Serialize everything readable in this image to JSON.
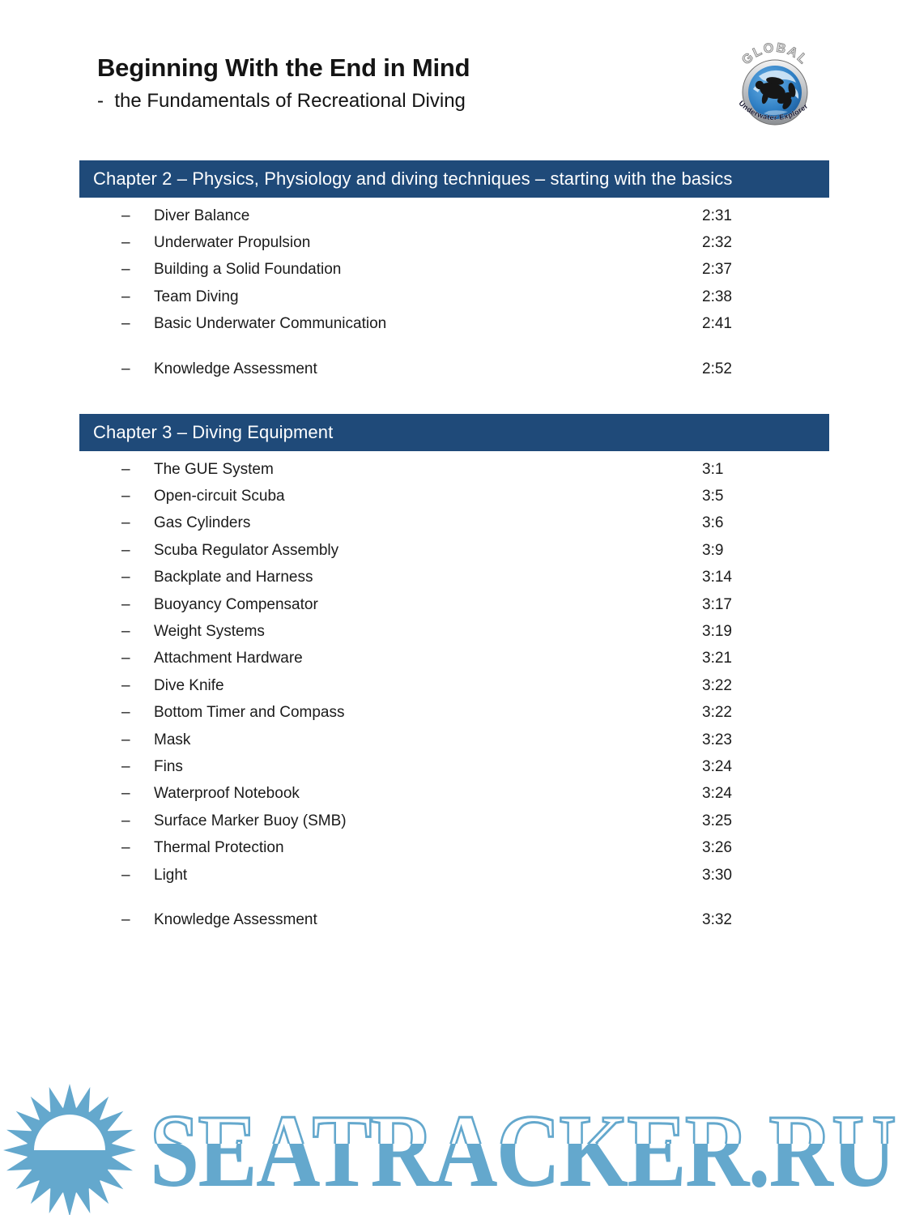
{
  "page": {
    "title": "Beginning With the End in Mind",
    "subtitle": "-  the Fundamentals of Recreational Diving"
  },
  "logo": {
    "top_text": "GLOBAL",
    "bottom_text": "Underwater Explorers"
  },
  "ui": {
    "bullet": "–"
  },
  "chapters": [
    {
      "title": "Chapter 2 – Physics, Physiology and diving techniques – starting with the basics",
      "items": [
        {
          "label": "Diver Balance",
          "time": "2:31"
        },
        {
          "label": "Underwater Propulsion",
          "time": "2:32"
        },
        {
          "label": "Building a Solid Foundation",
          "time": "2:37"
        },
        {
          "label": "Team Diving",
          "time": "2:38"
        },
        {
          "label": "Basic Underwater Communication",
          "time": "2:41"
        }
      ],
      "assessment": {
        "label": "Knowledge Assessment",
        "time": "2:52"
      }
    },
    {
      "title": "Chapter 3 – Diving Equipment",
      "items": [
        {
          "label": "The GUE System",
          "time": "3:1"
        },
        {
          "label": "Open-circuit Scuba",
          "time": "3:5"
        },
        {
          "label": "Gas Cylinders",
          "time": "3:6"
        },
        {
          "label": "Scuba Regulator Assembly",
          "time": "3:9"
        },
        {
          "label": "Backplate and Harness",
          "time": "3:14"
        },
        {
          "label": "Buoyancy Compensator",
          "time": "3:17"
        },
        {
          "label": "Weight Systems",
          "time": "3:19"
        },
        {
          "label": "Attachment Hardware",
          "time": "3:21"
        },
        {
          "label": "Dive Knife",
          "time": "3:22"
        },
        {
          "label": "Bottom Timer and Compass",
          "time": "3:22"
        },
        {
          "label": "Mask",
          "time": "3:23"
        },
        {
          "label": "Fins",
          "time": "3:24"
        },
        {
          "label": "Waterproof Notebook",
          "time": "3:24"
        },
        {
          "label": "Surface Marker Buoy (SMB)",
          "time": "3:25"
        },
        {
          "label": "Thermal Protection",
          "time": "3:26"
        },
        {
          "label": "Light",
          "time": "3:30"
        }
      ],
      "assessment": {
        "label": "Knowledge Assessment",
        "time": "3:32"
      }
    }
  ],
  "watermark": {
    "text": "SEATRACKER.RU"
  },
  "colors": {
    "chapter_bar": "#1f4a79",
    "text": "#1b1b1b",
    "watermark_blue": "#64a8cd",
    "globe_blue": "#2f7fc4"
  }
}
